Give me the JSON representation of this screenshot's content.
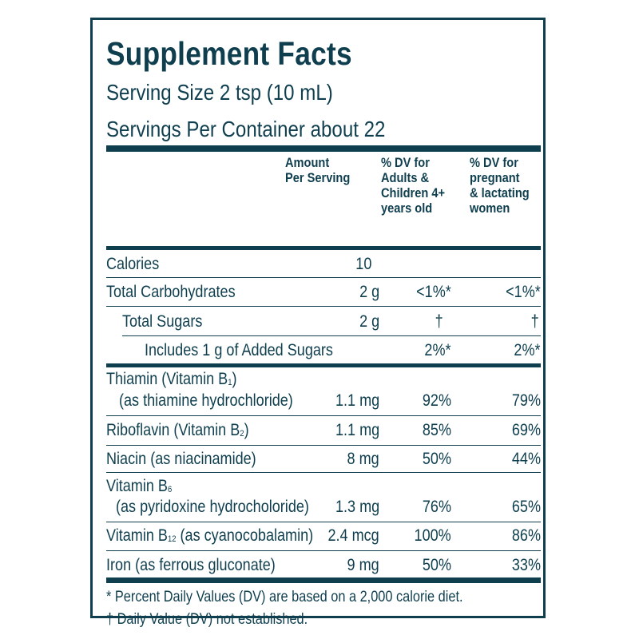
{
  "title": "Supplement Facts",
  "serving_size": "Serving Size 2 tsp (10 mL)",
  "servings_per_container": "Servings Per Container about 22",
  "columns": {
    "amount": [
      "Amount",
      "Per Serving"
    ],
    "dv_adults": [
      "% DV for",
      "Adults &",
      "Children 4+",
      "years old"
    ],
    "dv_pregnant": [
      "% DV for",
      "pregnant",
      "& lactating",
      "women"
    ]
  },
  "rows": [
    {
      "label": "Calories",
      "amount": "10",
      "dv_adults": "",
      "dv_pregnant": ""
    },
    {
      "label": "Total Carbohydrates",
      "amount": "2 g",
      "dv_adults": "<1%*",
      "dv_pregnant": "<1%*"
    },
    {
      "label": "Total Sugars",
      "amount": "2 g",
      "dv_adults": "†",
      "dv_pregnant": "†"
    },
    {
      "label": "Includes 1 g of Added Sugars",
      "amount": "",
      "dv_adults": "2%*",
      "dv_pregnant": "2%*"
    },
    {
      "label_line1_pre": "Thiamin (Vitamin B",
      "label_line1_sub": "1",
      "label_line1_post": ")",
      "label_line2": "(as thiamine hydrochloride)",
      "amount": "1.1 mg",
      "dv_adults": "92%",
      "dv_pregnant": "79%"
    },
    {
      "label_pre": "Riboflavin (Vitamin B",
      "label_sub": "2",
      "label_post": ")",
      "amount": "1.1 mg",
      "dv_adults": "85%",
      "dv_pregnant": "69%"
    },
    {
      "label": "Niacin (as niacinamide)",
      "amount": "8 mg",
      "dv_adults": "50%",
      "dv_pregnant": "44%"
    },
    {
      "label_line1_pre": "Vitamin B",
      "label_line1_sub": "6",
      "label_line2": "(as pyridoxine hydrocholoride)",
      "amount": "1.3 mg",
      "dv_adults": "76%",
      "dv_pregnant": "65%"
    },
    {
      "label_pre": "Vitamin B",
      "label_sub": "12",
      "label_post": " (as cyanocobalamin)",
      "amount": "2.4 mcg",
      "dv_adults": "100%",
      "dv_pregnant": "86%"
    },
    {
      "label": "Iron (as ferrous gluconate)",
      "amount": "9 mg",
      "dv_adults": "50%",
      "dv_pregnant": "33%"
    }
  ],
  "footnotes": [
    "* Percent Daily Values (DV) are based on a 2,000 calorie diet.",
    "† Daily Value (DV) not established."
  ],
  "colors": {
    "ink": "#0f3f4f",
    "background": "#ffffff"
  }
}
